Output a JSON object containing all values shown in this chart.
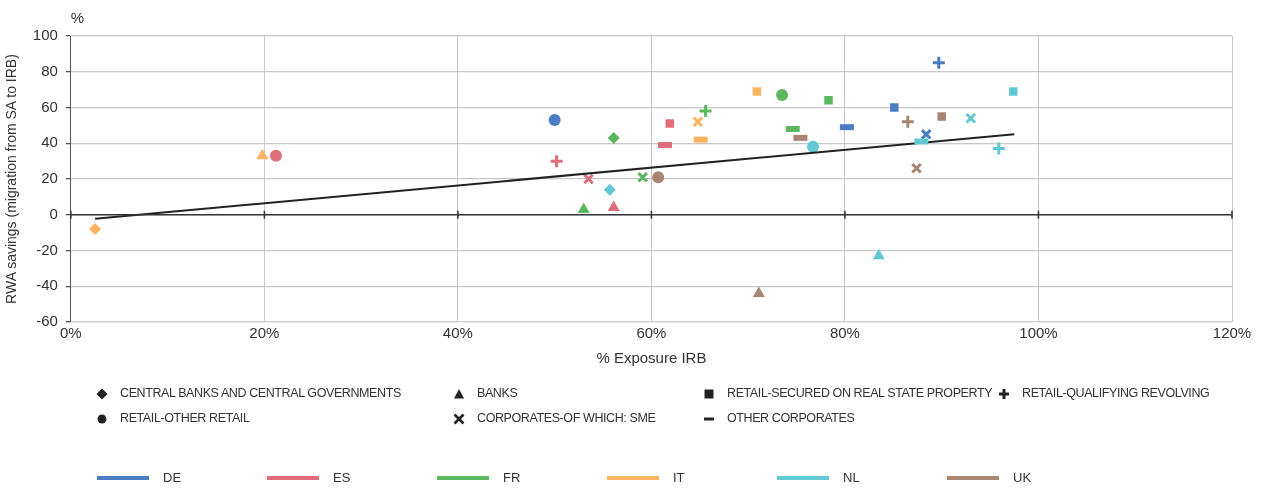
{
  "chart_data": {
    "type": "scatter",
    "xlabel": "% Exposure IRB",
    "ylabel": "RWA savings (migration from SA to IRB)",
    "annotations": [
      "%",
      "CENTRAL BANKS AND CENTRAL GOVERNMENTS",
      "BANKS",
      "RETAIL-SECURED ON REAL STATE PROPERTY",
      "RETAIL-QUALIFYING REVOLVING",
      "RETAIL-OTHER RETAIL",
      "CORPORATES-OF WHICH: SME",
      "OTHER CORPORATES"
    ],
    "xlim": [
      0,
      120
    ],
    "xticks": [
      {
        "value": 0,
        "label": "0%"
      },
      {
        "value": 20,
        "label": "20%"
      },
      {
        "value": 40,
        "label": "40%"
      },
      {
        "value": 60,
        "label": "60%"
      },
      {
        "value": 80,
        "label": "80%"
      },
      {
        "value": 100,
        "label": "100%"
      },
      {
        "value": 120,
        "label": "120%"
      }
    ],
    "ylim": [
      -60,
      100
    ],
    "yticks": [
      -60,
      -40,
      -20,
      0,
      20,
      40,
      60,
      80,
      100
    ],
    "grid": true,
    "legend": "bottom",
    "ref_lines": [
      {
        "axis": "y",
        "value": 0,
        "color": "#333333"
      }
    ],
    "series": [
      {
        "name": "DE",
        "color": "#4a7dc4",
        "marker": "square",
        "x": [
          85.1
        ],
        "values": [
          60
        ]
      },
      {
        "color": "#4a7dc4",
        "marker": "cross",
        "x": [
          89.7
        ],
        "values": [
          85
        ]
      },
      {
        "color": "#4a7dc4",
        "marker": "circle",
        "x": [
          50
        ],
        "values": [
          53
        ]
      },
      {
        "color": "#4a7dc4",
        "x": [
          80.2
        ],
        "values": [
          49
        ]
      },
      {
        "name": "ES",
        "color": "#e06d7b",
        "marker": "triangle",
        "x": [
          56.1
        ],
        "values": [
          4
        ]
      },
      {
        "color": "#e06d7b",
        "marker": "square",
        "x": [
          61.9
        ],
        "values": [
          51
        ]
      },
      {
        "color": "#e06d7b",
        "marker": "cross",
        "x": [
          50.2
        ],
        "values": [
          30
        ]
      },
      {
        "color": "#e06d7b",
        "marker": "circle",
        "x": [
          21.2
        ],
        "values": [
          33
        ]
      },
      {
        "color": "#e06d7b",
        "x": [
          61.4
        ],
        "values": [
          39
        ]
      },
      {
        "name": "FR",
        "color": "#5cb85f",
        "marker": "diamond",
        "x": [
          56.1
        ],
        "values": [
          43
        ]
      },
      {
        "color": "#5cb85f",
        "marker": "triangle",
        "x": [
          53
        ],
        "values": [
          3
        ]
      },
      {
        "color": "#5cb85f",
        "marker": "square",
        "x": [
          78.3
        ],
        "values": [
          64
        ]
      },
      {
        "color": "#5cb85f",
        "marker": "cross",
        "x": [
          65.6
        ],
        "values": [
          58
        ]
      },
      {
        "color": "#5cb85f",
        "marker": "circle",
        "x": [
          73.5
        ],
        "values": [
          67
        ]
      },
      {
        "color": "#5cb85f",
        "x": [
          74.6
        ],
        "values": [
          48
        ]
      },
      {
        "name": "IT",
        "color": "#fdb35f",
        "marker": "diamond",
        "x": [
          2.5
        ],
        "values": [
          -8
        ]
      },
      {
        "color": "#fdb35f",
        "marker": "triangle",
        "x": [
          19.8
        ],
        "values": [
          33
        ]
      },
      {
        "color": "#fdb35f",
        "marker": "square",
        "x": [
          70.9
        ],
        "values": [
          69
        ]
      },
      {
        "color": "#fdb35f",
        "x": [
          65.1
        ],
        "values": [
          42
        ]
      },
      {
        "name": "NL",
        "color": "#62c8d4",
        "marker": "diamond",
        "x": [
          55.7
        ],
        "values": [
          14
        ]
      },
      {
        "color": "#62c8d4",
        "marker": "triangle",
        "x": [
          83.5
        ],
        "values": [
          -23
        ]
      },
      {
        "color": "#62c8d4",
        "marker": "square",
        "x": [
          97.4
        ],
        "values": [
          69
        ]
      },
      {
        "color": "#62c8d4",
        "marker": "cross",
        "x": [
          95.9
        ],
        "values": [
          37
        ]
      },
      {
        "color": "#62c8d4",
        "marker": "circle",
        "x": [
          76.7
        ],
        "values": [
          38
        ]
      },
      {
        "color": "#62c8d4",
        "x": [
          87.9
        ],
        "values": [
          41
        ]
      },
      {
        "name": "UK",
        "color": "#a88571",
        "marker": "triangle",
        "x": [
          71.1
        ],
        "values": [
          -44
        ]
      },
      {
        "color": "#a88571",
        "marker": "square",
        "x": [
          90
        ],
        "values": [
          55
        ]
      },
      {
        "color": "#a88571",
        "marker": "cross",
        "x": [
          86.5
        ],
        "values": [
          52
        ]
      },
      {
        "color": "#a88571",
        "marker": "circle",
        "x": [
          60.7
        ],
        "values": [
          21
        ]
      },
      {
        "color": "#a88571",
        "x": [
          75.4
        ],
        "values": [
          43
        ]
      },
      {
        "color": "#4a7dc4",
        "marker": "x",
        "x": [
          88.4
        ],
        "values": [
          45
        ]
      },
      {
        "color": "#e06d7b",
        "marker": "x",
        "x": [
          53.5
        ],
        "values": [
          20
        ]
      },
      {
        "color": "#5cb85f",
        "marker": "x",
        "x": [
          59.1
        ],
        "values": [
          21
        ]
      },
      {
        "color": "#fdb35f",
        "marker": "x",
        "x": [
          64.8
        ],
        "values": [
          52
        ]
      },
      {
        "color": "#62c8d4",
        "marker": "x",
        "x": [
          93
        ],
        "values": [
          54
        ]
      },
      {
        "color": "#a88571",
        "marker": "x",
        "x": [
          87.4
        ],
        "values": [
          26
        ]
      },
      {
        "type": "line",
        "color": "#222222",
        "x": [
          2.5,
          97.5
        ],
        "values": [
          -2.3,
          45
        ]
      }
    ]
  }
}
